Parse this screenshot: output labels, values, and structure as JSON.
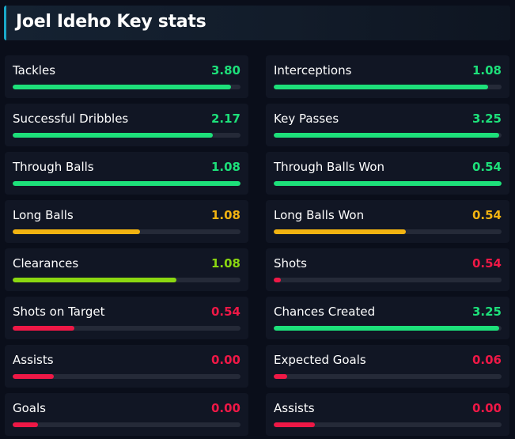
{
  "header": {
    "title": "Joel Ideho Key stats"
  },
  "colors": {
    "green": "#1de07a",
    "yellow": "#f2b311",
    "lime": "#8bd711",
    "red": "#ee1846"
  },
  "stats": [
    {
      "label": "Tackles",
      "value": "3.80",
      "color": "green",
      "fill": 0.96
    },
    {
      "label": "Interceptions",
      "value": "1.08",
      "color": "green",
      "fill": 0.94
    },
    {
      "label": "Successful Dribbles",
      "value": "2.17",
      "color": "green",
      "fill": 0.88
    },
    {
      "label": "Key Passes",
      "value": "3.25",
      "color": "green",
      "fill": 0.99
    },
    {
      "label": "Through Balls",
      "value": "1.08",
      "color": "green",
      "fill": 1.0
    },
    {
      "label": "Through Balls Won",
      "value": "0.54",
      "color": "green",
      "fill": 1.0
    },
    {
      "label": "Long Balls",
      "value": "1.08",
      "color": "yellow",
      "fill": 0.56
    },
    {
      "label": "Long Balls Won",
      "value": "0.54",
      "color": "yellow",
      "fill": 0.58
    },
    {
      "label": "Clearances",
      "value": "1.08",
      "color": "lime",
      "fill": 0.72
    },
    {
      "label": "Shots",
      "value": "0.54",
      "color": "red",
      "fill": 0.03
    },
    {
      "label": "Shots on Target",
      "value": "0.54",
      "color": "red",
      "fill": 0.27
    },
    {
      "label": "Chances Created",
      "value": "3.25",
      "color": "green",
      "fill": 0.99
    },
    {
      "label": "Assists",
      "value": "0.00",
      "color": "red",
      "fill": 0.18
    },
    {
      "label": "Expected Goals",
      "value": "0.06",
      "color": "red",
      "fill": 0.06
    },
    {
      "label": "Goals",
      "value": "0.00",
      "color": "red",
      "fill": 0.11
    },
    {
      "label": "Assists",
      "value": "0.00",
      "color": "red",
      "fill": 0.18
    }
  ]
}
